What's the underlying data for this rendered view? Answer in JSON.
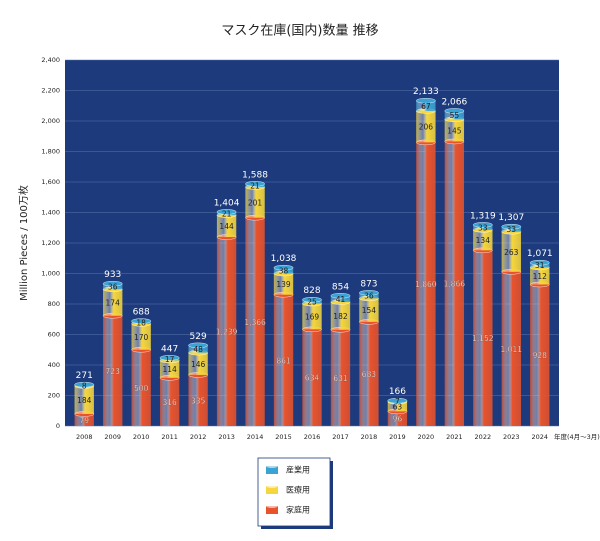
{
  "chart_data": {
    "type": "stacked_bar",
    "title": "マスク在庫(国内)数量 推移",
    "y_label": "Million Pieces / 100万枚",
    "x_note": "年度(4月～3月)",
    "categories": [
      "2008",
      "2009",
      "2010",
      "2011",
      "2012",
      "2013",
      "2014",
      "2015",
      "2016",
      "2017",
      "2018",
      "2019",
      "2020",
      "2021",
      "2022",
      "2023",
      "2024"
    ],
    "series": [
      {
        "name": "家庭用",
        "color": "#e9532b",
        "values": [
          79,
          723,
          500,
          316,
          335,
          1239,
          1366,
          861,
          634,
          631,
          683,
          96,
          1860,
          1866,
          1152,
          1011,
          928
        ],
        "value_labels": [
          "79",
          "723",
          "500",
          "316",
          "335",
          "1,239",
          "1,366",
          "861",
          "634",
          "631",
          "683",
          "96",
          "1,860",
          "1,866",
          "1,152",
          "1,011",
          "928"
        ]
      },
      {
        "name": "医療用",
        "color": "#f6d63c",
        "values": [
          184,
          174,
          170,
          114,
          146,
          144,
          201,
          139,
          169,
          182,
          154,
          63,
          206,
          145,
          134,
          263,
          112
        ]
      },
      {
        "name": "産業用",
        "color": "#3ba3d4",
        "values": [
          8,
          36,
          18,
          17,
          48,
          21,
          21,
          38,
          25,
          41,
          36,
          7,
          67,
          55,
          33,
          33,
          31
        ]
      }
    ],
    "totals": {
      "values": [
        271,
        933,
        688,
        447,
        529,
        1404,
        1588,
        1038,
        828,
        854,
        873,
        166,
        2133,
        2066,
        1319,
        1307,
        1071
      ],
      "value_labels": [
        "271",
        "933",
        "688",
        "447",
        "529",
        "1,404",
        "1,588",
        "1,038",
        "828",
        "854",
        "873",
        "166",
        "2,133",
        "2,066",
        "1,319",
        "1,307",
        "1,071"
      ]
    },
    "ylim": [
      0,
      2400
    ],
    "yticks": [
      0,
      200,
      400,
      600,
      800,
      {
        "value": 1000,
        "label": "1,000"
      },
      {
        "value": 1200,
        "label": "1,200"
      },
      {
        "value": 1400,
        "label": "1,400"
      },
      {
        "value": 1600,
        "label": "1,600"
      },
      {
        "value": 1800,
        "label": "1,800"
      },
      {
        "value": 2000,
        "label": "2,000"
      },
      {
        "value": 2200,
        "label": "2,200"
      },
      {
        "value": 2400,
        "label": "2,400"
      }
    ],
    "grid": true,
    "legend": "bottom"
  }
}
